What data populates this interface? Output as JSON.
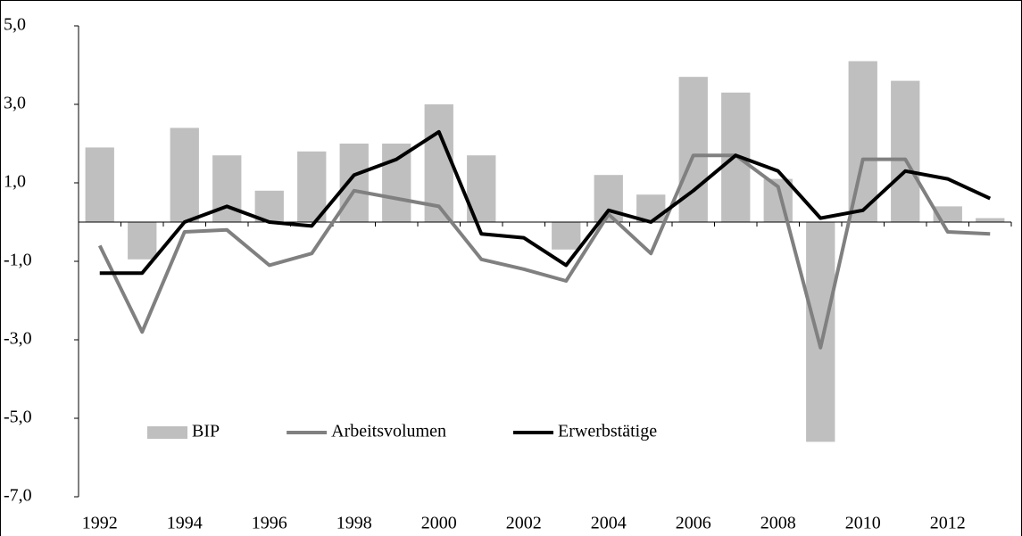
{
  "chart_data": {
    "type": "bar",
    "categories": [
      "1992",
      null,
      "1994",
      null,
      "1996",
      null,
      "1998",
      null,
      "2000",
      null,
      "2002",
      null,
      "2004",
      null,
      "2006",
      null,
      "2008",
      null,
      "2010",
      null,
      "2012",
      null
    ],
    "series": [
      {
        "name": "BIP",
        "type": "bar",
        "color": "#bfbfbf",
        "values": [
          1.9,
          -0.95,
          2.4,
          1.7,
          0.8,
          1.8,
          2.0,
          2.0,
          3.0,
          1.7,
          0.0,
          -0.7,
          1.2,
          0.7,
          3.7,
          3.3,
          1.1,
          -5.6,
          4.1,
          3.6,
          0.4,
          0.1
        ]
      },
      {
        "name": "Arbeitsvolumen",
        "type": "line",
        "color": "#808080",
        "values": [
          -0.6,
          -2.8,
          -0.25,
          -0.2,
          -1.1,
          -0.8,
          0.8,
          0.6,
          0.4,
          -0.95,
          -1.2,
          -1.5,
          0.2,
          -0.8,
          1.7,
          1.7,
          0.9,
          -3.2,
          1.6,
          1.6,
          -0.25,
          -0.3
        ]
      },
      {
        "name": "Erwerbstätige",
        "type": "line",
        "color": "#000000",
        "values": [
          -1.3,
          -1.3,
          0.0,
          0.4,
          0.0,
          -0.1,
          1.2,
          1.6,
          2.3,
          -0.3,
          -0.4,
          -1.1,
          0.3,
          0.0,
          0.8,
          1.7,
          1.3,
          0.1,
          0.3,
          1.3,
          1.1,
          0.6
        ]
      }
    ],
    "ylim": [
      -7,
      5
    ],
    "yticks": [
      {
        "value": -7,
        "label": "-7,0"
      },
      {
        "value": -5,
        "label": "-5,0"
      },
      {
        "value": -3,
        "label": "-3,0"
      },
      {
        "value": -1,
        "label": "-1,0"
      },
      {
        "value": 1,
        "label": "1,0"
      },
      {
        "value": 3,
        "label": "3,0"
      },
      {
        "value": 5,
        "label": "5,0"
      }
    ],
    "grid": false,
    "legend": "lower left"
  }
}
